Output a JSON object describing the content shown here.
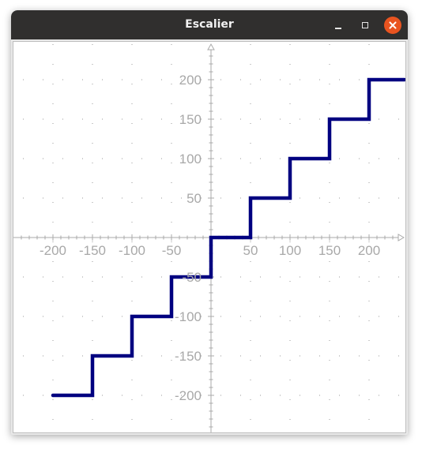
{
  "window": {
    "title": "Escalier",
    "controls": [
      "minimize-icon",
      "maximize-icon",
      "close-icon"
    ],
    "close_color": "#e95420"
  },
  "chart_data": {
    "type": "line",
    "title": "",
    "xlabel": "",
    "ylabel": "",
    "xlim": [
      -250,
      250
    ],
    "ylim": [
      -250,
      250
    ],
    "grid": true,
    "x_ticks": [
      -200,
      -150,
      -100,
      -50,
      50,
      100,
      150,
      200
    ],
    "y_ticks": [
      200,
      150,
      100,
      50,
      -50,
      -100,
      -150,
      -200
    ],
    "x_tick_labels": [
      "-200",
      "-150",
      "-100",
      "-50",
      "50",
      "100",
      "150",
      "200"
    ],
    "y_tick_labels": [
      "200",
      "150",
      "100",
      "50",
      "-50",
      "-100",
      "-150",
      "-200"
    ],
    "line_color": "#000080",
    "series": [
      {
        "points": [
          [
            -200,
            -200
          ],
          [
            -150,
            -200
          ],
          [
            -150,
            -150
          ],
          [
            -100,
            -150
          ],
          [
            -100,
            -100
          ],
          [
            -50,
            -100
          ],
          [
            -50,
            -50
          ],
          [
            0,
            -50
          ],
          [
            0,
            0
          ],
          [
            50,
            0
          ],
          [
            50,
            50
          ],
          [
            100,
            50
          ],
          [
            100,
            100
          ],
          [
            150,
            100
          ],
          [
            150,
            150
          ],
          [
            200,
            150
          ],
          [
            200,
            200
          ],
          [
            245,
            200
          ]
        ]
      }
    ]
  }
}
